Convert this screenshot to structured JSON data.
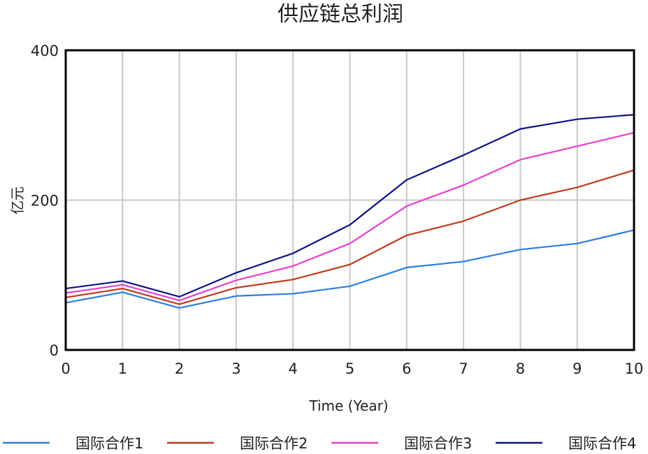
{
  "chart_data": {
    "type": "line",
    "title": "供应链总利润",
    "xlabel": "Time (Year)",
    "ylabel": "亿元",
    "x": [
      0,
      1,
      2,
      3,
      4,
      5,
      6,
      7,
      8,
      9,
      10
    ],
    "xlim": [
      0,
      10
    ],
    "ylim": [
      0,
      400
    ],
    "yticks": [
      0,
      200,
      400
    ],
    "grid": true,
    "legend_position": "bottom",
    "series": [
      {
        "name": "国际合作1",
        "color": "#2a7de1",
        "values": [
          63,
          77,
          56,
          72,
          75,
          85,
          110,
          118,
          134,
          142,
          160
        ]
      },
      {
        "name": "国际合作2",
        "color": "#c0391b",
        "values": [
          70,
          82,
          61,
          83,
          94,
          114,
          153,
          172,
          200,
          217,
          240
        ]
      },
      {
        "name": "国际合作3",
        "color": "#e63fd0",
        "values": [
          76,
          87,
          66,
          93,
          112,
          142,
          192,
          220,
          254,
          272,
          290
        ]
      },
      {
        "name": "国际合作4",
        "color": "#0d1282",
        "values": [
          82,
          92,
          71,
          103,
          129,
          167,
          227,
          260,
          295,
          308,
          314
        ]
      }
    ]
  }
}
